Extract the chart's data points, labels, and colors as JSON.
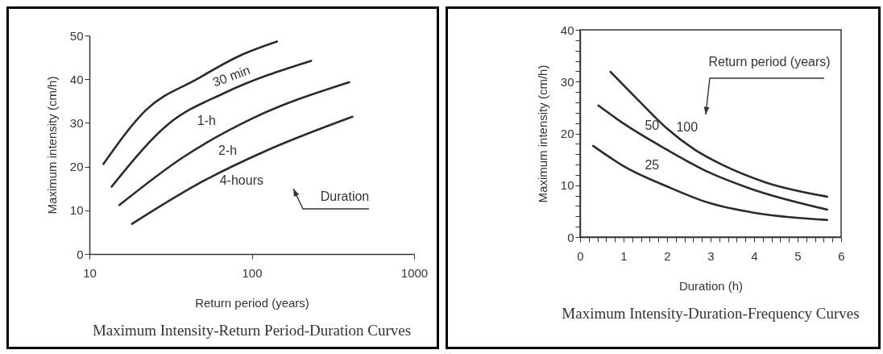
{
  "chart_data": [
    {
      "type": "line",
      "title": "Maximum Intensity-Return Period-Duration Curves",
      "xlabel": "Return period (years)",
      "ylabel": "Maximum intensity (cm/h)",
      "log": "x",
      "xlim": [
        10,
        1000
      ],
      "xticks": [
        10,
        100,
        1000
      ],
      "ylim": [
        0,
        50
      ],
      "yticks": [
        0,
        10,
        20,
        30,
        40,
        50
      ],
      "grid": false,
      "annotations": [
        "Duration"
      ],
      "series": [
        {
          "name": "30 min",
          "color": "#2b2b2b",
          "x": [
            12.2,
            22.4,
            45.9,
            83.6,
            143
          ],
          "values": [
            20.6,
            33.0,
            40.0,
            45.3,
            48.6
          ]
        },
        {
          "name": "1-h",
          "color": "#2b2b2b",
          "x": [
            13.7,
            30.8,
            68.4,
            232
          ],
          "values": [
            15.4,
            29.8,
            36.9,
            44.2
          ]
        },
        {
          "name": "2-h",
          "color": "#2b2b2b",
          "x": [
            15.3,
            37.6,
            102,
            398
          ],
          "values": [
            11.2,
            22.1,
            31.1,
            39.3
          ]
        },
        {
          "name": "4-hours",
          "color": "#2b2b2b",
          "x": [
            18.3,
            45.9,
            124,
            417
          ],
          "values": [
            6.9,
            15.9,
            23.7,
            31.4
          ]
        }
      ]
    },
    {
      "type": "line",
      "title": "Maximum Intensity-Duration-Frequency Curves",
      "xlabel": "Duration (h)",
      "ylabel": "Maximum intensity (cm/h)",
      "xlim": [
        0,
        6
      ],
      "ylim": [
        0,
        40
      ],
      "grid": false,
      "annotations": [
        "Return period (years)"
      ],
      "xticks": [
        0,
        {
          "value": 0.2,
          "label": null
        },
        {
          "value": 0.4,
          "label": null
        },
        {
          "value": 0.6,
          "label": null
        },
        {
          "value": 0.8,
          "label": null
        },
        1,
        {
          "value": 1.2,
          "label": null
        },
        {
          "value": 1.4,
          "label": null
        },
        {
          "value": 1.6,
          "label": null
        },
        {
          "value": 1.8,
          "label": null
        },
        2,
        {
          "value": 2.2,
          "label": null
        },
        {
          "value": 2.4,
          "label": null
        },
        {
          "value": 2.6,
          "label": null
        },
        {
          "value": 2.8,
          "label": null
        },
        3,
        {
          "value": 3.2,
          "label": null
        },
        {
          "value": 3.4,
          "label": null
        },
        {
          "value": 3.6,
          "label": null
        },
        {
          "value": 3.8,
          "label": null
        },
        4,
        {
          "value": 4.2,
          "label": null
        },
        {
          "value": 4.4,
          "label": null
        },
        {
          "value": 4.6,
          "label": null
        },
        {
          "value": 4.8,
          "label": null
        },
        5,
        {
          "value": 5.2,
          "label": null
        },
        {
          "value": 5.4,
          "label": null
        },
        {
          "value": 5.6,
          "label": null
        },
        {
          "value": 5.8,
          "label": null
        },
        6
      ],
      "yticks": [
        0,
        {
          "value": 2,
          "label": null
        },
        {
          "value": 4,
          "label": null
        },
        {
          "value": 6,
          "label": null
        },
        {
          "value": 8,
          "label": null
        },
        10,
        {
          "value": 12,
          "label": null
        },
        {
          "value": 14,
          "label": null
        },
        {
          "value": 16,
          "label": null
        },
        {
          "value": 18,
          "label": null
        },
        20,
        {
          "value": 22,
          "label": null
        },
        {
          "value": 24,
          "label": null
        },
        {
          "value": 26,
          "label": null
        },
        {
          "value": 28,
          "label": null
        },
        30,
        {
          "value": 32,
          "label": null
        },
        {
          "value": 34,
          "label": null
        },
        {
          "value": 36,
          "label": null
        },
        {
          "value": 38,
          "label": null
        },
        40
      ],
      "series": [
        {
          "name": "100",
          "color": "#2b2b2b",
          "x": [
            0.7,
            1.34,
            1.99,
            2.63,
            3.28,
            4.25,
            5.68
          ],
          "values": [
            31.9,
            26.4,
            21.0,
            16.9,
            13.9,
            10.6,
            7.8
          ]
        },
        {
          "name": "50",
          "color": "#2b2b2b",
          "x": [
            0.42,
            1.02,
            1.99,
            2.96,
            3.93,
            5.68
          ],
          "values": [
            25.4,
            21.8,
            16.9,
            12.5,
            9.3,
            5.3
          ]
        },
        {
          "name": "25",
          "color": "#2b2b2b",
          "x": [
            0.3,
            1.02,
            1.99,
            2.96,
            3.93,
            5.68
          ],
          "values": [
            17.6,
            13.6,
            9.8,
            6.6,
            4.8,
            3.3
          ]
        }
      ]
    }
  ]
}
